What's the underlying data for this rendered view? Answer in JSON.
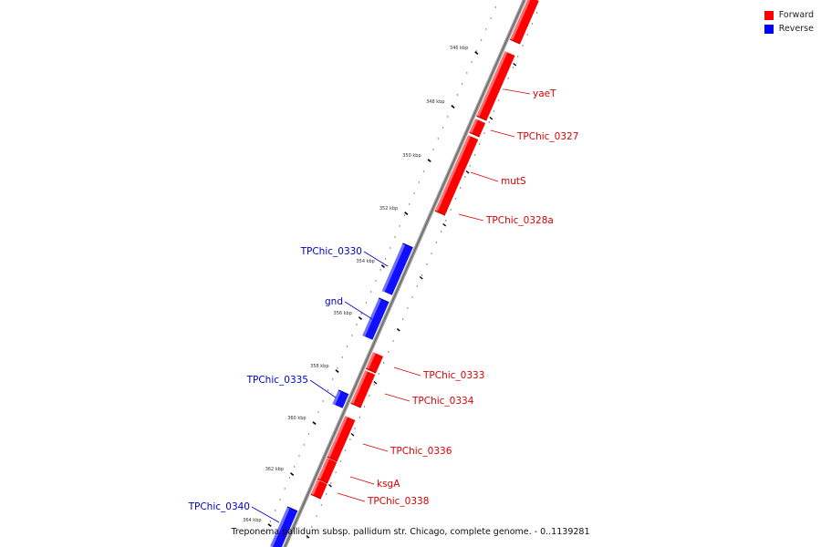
{
  "legend": [
    {
      "label": "Forward",
      "color": "#ff0000"
    },
    {
      "label": "Reverse",
      "color": "#0000ff"
    }
  ],
  "caption": "Treponema pallidum subsp. pallidum str. Chicago, complete genome. - 0..1139281",
  "ticks": [
    "346 kbp",
    "348 kbp",
    "350 kbp",
    "352 kbp",
    "354 kbp",
    "356 kbp",
    "358 kbp",
    "360 kbp",
    "362 kbp",
    "364 kbp"
  ],
  "genes": [
    {
      "name": "",
      "strand": "forward"
    },
    {
      "name": "yaeT",
      "strand": "forward"
    },
    {
      "name": "TPChic_0327",
      "strand": "forward"
    },
    {
      "name": "mutS",
      "strand": "forward"
    },
    {
      "name": "TPChic_0328a",
      "strand": "forward"
    },
    {
      "name": "TPChic_0330",
      "strand": "reverse"
    },
    {
      "name": "gnd",
      "strand": "reverse"
    },
    {
      "name": "TPChic_0333",
      "strand": "forward"
    },
    {
      "name": "TPChic_0334",
      "strand": "forward"
    },
    {
      "name": "TPChic_0335",
      "strand": "reverse"
    },
    {
      "name": "TPChic_0336",
      "strand": "forward"
    },
    {
      "name": "ksgA",
      "strand": "forward"
    },
    {
      "name": "TPChic_0338",
      "strand": "forward"
    },
    {
      "name": "TPChic_0340",
      "strand": "reverse"
    }
  ]
}
